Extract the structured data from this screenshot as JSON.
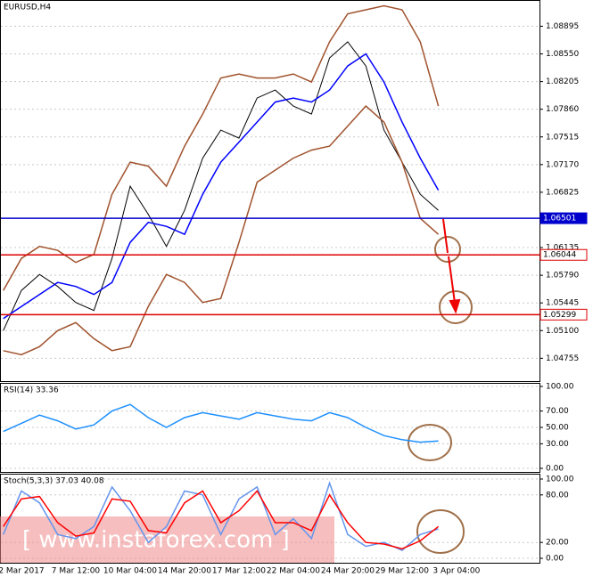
{
  "chart_data": [
    {
      "type": "price",
      "title": "EURUSD,H4",
      "watermark": "[ www.instaforex.com ]",
      "categories": [
        null,
        "2 Mar 2017",
        null,
        null,
        "7 Mar 12:00",
        null,
        null,
        "10 Mar 04:00",
        null,
        null,
        "14 Mar 20:00",
        null,
        null,
        "17 Mar 12:00",
        null,
        null,
        "22 Mar 04:00",
        null,
        null,
        "24 Mar 20:00",
        null,
        null,
        "29 Mar 12:00",
        null,
        null,
        "3 Apr 04:00"
      ],
      "series": [
        {
          "color": "#000000",
          "values": [
            1.051,
            1.056,
            1.058,
            1.0565,
            1.0545,
            1.0535,
            1.06,
            1.069,
            1.0655,
            1.0615,
            1.066,
            1.0725,
            1.076,
            1.075,
            1.08,
            1.081,
            1.079,
            1.078,
            1.085,
            1.087,
            1.084,
            1.076,
            1.072,
            1.068,
            1.066,
            null
          ]
        },
        {
          "color": "#a0522d",
          "values": [
            1.056,
            1.06,
            1.0615,
            1.061,
            1.0595,
            1.0605,
            1.068,
            1.072,
            1.0715,
            1.069,
            1.074,
            1.078,
            1.0825,
            1.083,
            1.0825,
            1.0825,
            1.083,
            1.082,
            1.087,
            1.0905,
            1.091,
            1.0915,
            1.091,
            1.087,
            1.079,
            null
          ]
        },
        {
          "color": "#a0522d",
          "values": [
            1.0485,
            1.048,
            1.049,
            1.051,
            1.052,
            1.05,
            1.0485,
            1.049,
            1.054,
            1.058,
            1.057,
            1.0545,
            1.055,
            1.062,
            1.0695,
            1.071,
            1.0725,
            1.0735,
            1.074,
            1.0765,
            1.079,
            1.077,
            1.072,
            1.065,
            1.063,
            null
          ]
        },
        {
          "color": "#0000ff",
          "values": [
            1.0525,
            1.054,
            1.0555,
            1.057,
            1.0565,
            1.0555,
            1.057,
            1.062,
            1.0645,
            1.064,
            1.063,
            1.068,
            1.072,
            1.0745,
            1.077,
            1.0795,
            1.08,
            1.0795,
            1.081,
            1.084,
            1.0855,
            1.082,
            1.077,
            1.0725,
            1.0685,
            null
          ]
        }
      ],
      "levels": [
        {
          "value": 1.06501,
          "color": "#0000cc"
        },
        {
          "value": 1.06044,
          "color": "#dd0000"
        },
        {
          "value": 1.05299,
          "color": "#dd0000"
        }
      ],
      "ylim": [
        1.0447,
        1.092
      ],
      "yticks": [
        1.08895,
        {
          "value": 1.0855,
          "label": "1.08550"
        },
        1.08205,
        {
          "value": 1.0786,
          "label": "1.07860"
        },
        1.07515,
        {
          "value": 1.0717,
          "label": "1.07170"
        },
        1.06825,
        1.06135,
        {
          "value": 1.0579,
          "label": "1.05790"
        },
        1.05445,
        {
          "value": 1.051,
          "label": "1.05100"
        },
        1.04755
      ]
    },
    {
      "type": "rsi",
      "title": "RSI(14) 33.36",
      "series": [
        {
          "color": "#1e90ff",
          "values": [
            45,
            55,
            65,
            58,
            48,
            53,
            70,
            78,
            62,
            50,
            62,
            68,
            64,
            60,
            68,
            64,
            60,
            58,
            68,
            62,
            50,
            40,
            35,
            32,
            33.36,
            null
          ]
        }
      ],
      "ylim": [
        0,
        100
      ],
      "yticks": [
        {
          "value": 100,
          "label": "100.00"
        },
        {
          "value": 70,
          "label": "70.00"
        },
        {
          "value": 50,
          "label": "50.00"
        },
        {
          "value": 30,
          "label": "30.00"
        },
        {
          "value": 0,
          "label": "0.00"
        }
      ]
    },
    {
      "type": "stoch",
      "title": "Stoch(5,3,3) 37.03 40.08",
      "series": [
        {
          "color": "#6495ed",
          "values": [
            30,
            85,
            70,
            30,
            25,
            40,
            90,
            60,
            20,
            40,
            85,
            80,
            30,
            75,
            90,
            30,
            50,
            25,
            95,
            30,
            15,
            20,
            10,
            30,
            37.03,
            null
          ]
        },
        {
          "color": "#ff0000",
          "values": [
            40,
            75,
            78,
            45,
            28,
            32,
            75,
            72,
            35,
            32,
            70,
            85,
            45,
            60,
            85,
            45,
            45,
            35,
            80,
            45,
            20,
            18,
            12,
            22,
            40.08,
            null
          ]
        }
      ],
      "ylim": [
        0,
        100
      ],
      "yticks": [
        {
          "value": 100,
          "label": "100.00"
        },
        {
          "value": 80,
          "label": "80.00"
        },
        {
          "value": 20,
          "label": "20.00"
        },
        {
          "value": 0,
          "label": "0.00"
        }
      ]
    }
  ]
}
